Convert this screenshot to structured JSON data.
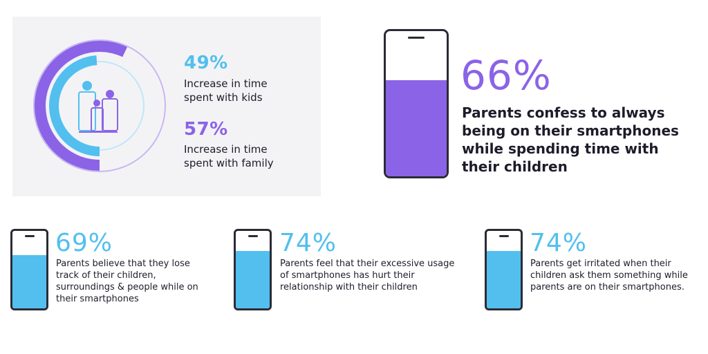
{
  "colors": {
    "purple": "#8b63e6",
    "blue": "#52bfef",
    "dark": "#2b2b35",
    "panel": "#f3f3f5"
  },
  "icons": {
    "family": "family-icon",
    "phone": "smartphone-icon"
  },
  "chart_data": [
    {
      "type": "radial-progress",
      "series": [
        {
          "value": 49,
          "value_label": "49%",
          "description": "Increase in time spent with kids",
          "color": "#52bfef"
        },
        {
          "value": 57,
          "value_label": "57%",
          "description": "Increase in time spent with family",
          "color": "#8b63e6"
        }
      ]
    },
    {
      "type": "progress",
      "value": 66,
      "value_label": "66%",
      "description": "Parents confess to always being on their smartphones while spending time with their children",
      "color": "#8b63e6"
    },
    {
      "type": "progress",
      "value": 69,
      "value_label": "69%",
      "description": "Parents believe that they lose track of their children, surroundings & people while on their smartphones",
      "color": "#52bfef"
    },
    {
      "type": "progress",
      "value": 74,
      "value_label": "74%",
      "description": "Parents feel that their excessive usage of smartphones has hurt their relationship with their children",
      "color": "#52bfef"
    },
    {
      "type": "progress",
      "value": 74,
      "value_label": "74%",
      "description": "Parents get irritated when their children ask them something while parents are on their smartphones.",
      "color": "#52bfef"
    }
  ]
}
